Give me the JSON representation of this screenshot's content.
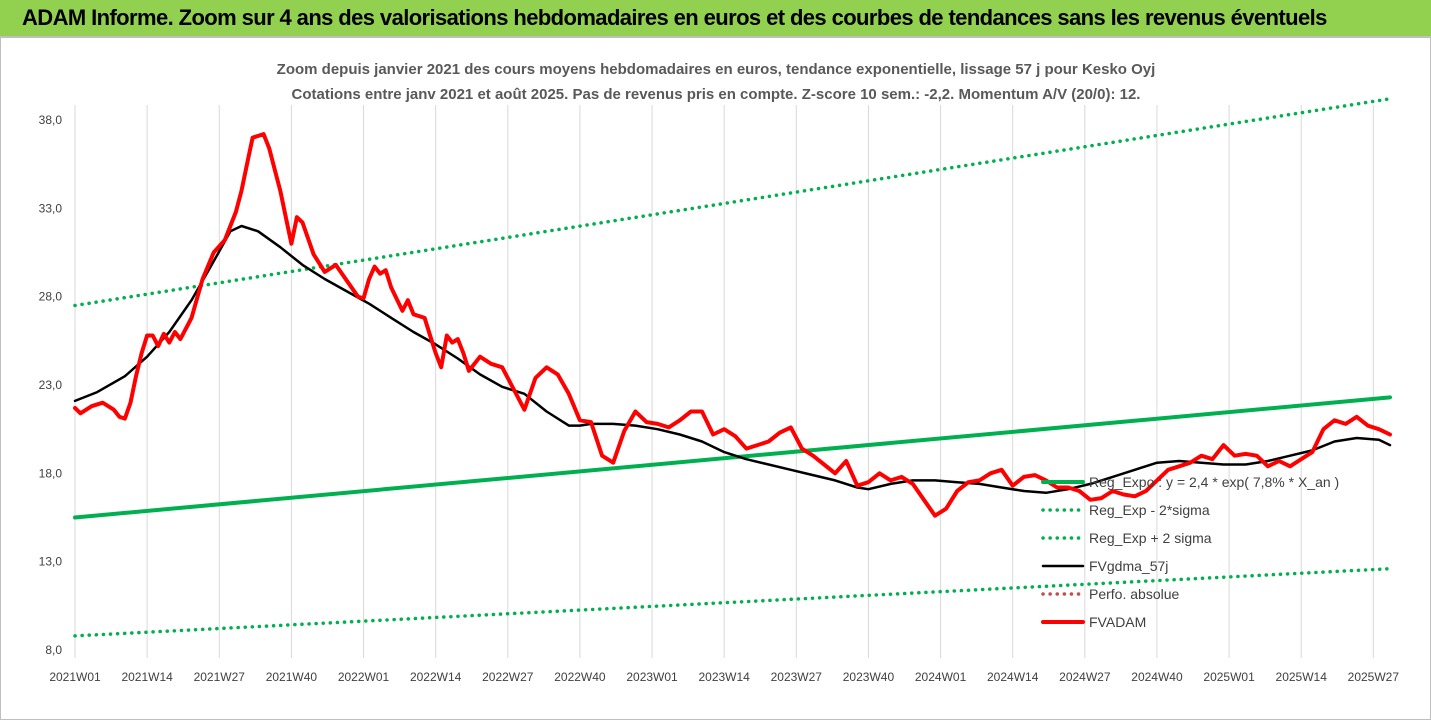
{
  "banner": {
    "title": "ADAM Informe. Zoom sur 4 ans des valorisations hebdomadaires en euros et des courbes de tendances sans les revenus éventuels"
  },
  "colors": {
    "banner_bg": "#92d050",
    "trend_green": "#00b050",
    "band_green": "#00b050",
    "smooth_black": "#000000",
    "price_red": "#ff0000",
    "perf_dotted": "#c0504d"
  },
  "chart_data": {
    "type": "line",
    "title": "Zoom depuis janvier 2021 des cours moyens hebdomadaires en euros, tendance exponentielle, lissage 57 j pour Kesko Oyj",
    "subtitle": "Cotations entre janv 2021 et août 2025.  Pas de revenus pris en compte. Z-score 10 sem.: -2,2. Momentum A/V (20/0): 12.",
    "xlabel": "",
    "ylabel": "",
    "ylim": [
      8,
      40
    ],
    "yticks": [
      8,
      13,
      18,
      23,
      28,
      33,
      38
    ],
    "ytick_labels": [
      "8,0",
      "13,0",
      "18,0",
      "23,0",
      "28,0",
      "33,0",
      "38,0"
    ],
    "xticks": [
      {
        "week": 1,
        "label": "2021W01"
      },
      {
        "week": 14,
        "label": "2021W14"
      },
      {
        "week": 27,
        "label": "2021W27"
      },
      {
        "week": 40,
        "label": "2021W40"
      },
      {
        "week": 53,
        "label": "2022W01"
      },
      {
        "week": 66,
        "label": "2022W14"
      },
      {
        "week": 79,
        "label": "2022W27"
      },
      {
        "week": 92,
        "label": "2022W40"
      },
      {
        "week": 105,
        "label": "2023W01"
      },
      {
        "week": 118,
        "label": "2023W14"
      },
      {
        "week": 131,
        "label": "2023W27"
      },
      {
        "week": 144,
        "label": "2023W40"
      },
      {
        "week": 157,
        "label": "2024W01"
      },
      {
        "week": 170,
        "label": "2024W14"
      },
      {
        "week": 183,
        "label": "2024W27"
      },
      {
        "week": 196,
        "label": "2024W40"
      },
      {
        "week": 209,
        "label": "2025W01"
      },
      {
        "week": 222,
        "label": "2025W14"
      },
      {
        "week": 235,
        "label": "2025W27"
      }
    ],
    "x_range": [
      1,
      238
    ],
    "grid": "vertical",
    "legend_position": "bottom-right",
    "series": [
      {
        "name": "Reg_Expo : y = 2,4 * exp( 7,8% *  X_an )",
        "style": "solid-thick",
        "color": "#00b050",
        "x": [
          1,
          238
        ],
        "values": [
          15.5,
          22.3
        ]
      },
      {
        "name": "Reg_Exp - 2*sigma",
        "style": "dotted",
        "color": "#00b050",
        "x": [
          1,
          238
        ],
        "values": [
          8.8,
          12.6
        ]
      },
      {
        "name": "Reg_Exp + 2 sigma",
        "style": "dotted",
        "color": "#00b050",
        "x": [
          1,
          238
        ],
        "values": [
          27.5,
          39.2
        ]
      },
      {
        "name": "FVgdma_57j",
        "style": "solid",
        "color": "#000000",
        "x": [
          1,
          5,
          10,
          14,
          18,
          22,
          26,
          29,
          31,
          34,
          38,
          42,
          46,
          50,
          54,
          58,
          62,
          66,
          70,
          74,
          78,
          82,
          86,
          90,
          92,
          94,
          98,
          102,
          106,
          110,
          114,
          118,
          122,
          126,
          130,
          134,
          138,
          142,
          144,
          148,
          152,
          156,
          160,
          164,
          168,
          172,
          176,
          180,
          184,
          188,
          192,
          196,
          200,
          204,
          208,
          212,
          216,
          220,
          224,
          228,
          232,
          236,
          238
        ],
        "values": [
          22.1,
          22.6,
          23.5,
          24.6,
          26.0,
          27.8,
          30.0,
          31.7,
          32.0,
          31.7,
          30.8,
          29.8,
          29.0,
          28.3,
          27.6,
          26.8,
          26.0,
          25.3,
          24.5,
          23.6,
          22.9,
          22.5,
          21.5,
          20.7,
          20.7,
          20.8,
          20.8,
          20.7,
          20.5,
          20.2,
          19.8,
          19.2,
          18.8,
          18.5,
          18.2,
          17.9,
          17.6,
          17.2,
          17.1,
          17.4,
          17.6,
          17.6,
          17.5,
          17.4,
          17.2,
          17.0,
          16.9,
          17.1,
          17.4,
          17.8,
          18.2,
          18.6,
          18.7,
          18.6,
          18.5,
          18.5,
          18.7,
          19.0,
          19.3,
          19.8,
          20.0,
          19.9,
          19.6
        ]
      },
      {
        "name": "Perfo. absolue",
        "style": "dotted",
        "color": "#c0504d",
        "x": [],
        "values": []
      },
      {
        "name": "FVADAM",
        "style": "solid-thick",
        "color": "#ff0000",
        "x": [
          1,
          2,
          4,
          6,
          8,
          9,
          10,
          11,
          12,
          13,
          14,
          15,
          16,
          17,
          18,
          19,
          20,
          22,
          24,
          26,
          28,
          30,
          31,
          32,
          33,
          35,
          36,
          37,
          38,
          39,
          40,
          41,
          42,
          44,
          46,
          48,
          50,
          52,
          53,
          54,
          55,
          56,
          57,
          58,
          60,
          61,
          62,
          64,
          65,
          66,
          67,
          68,
          69,
          70,
          71,
          72,
          74,
          76,
          78,
          80,
          82,
          84,
          86,
          88,
          90,
          92,
          94,
          96,
          98,
          100,
          102,
          104,
          106,
          108,
          110,
          112,
          114,
          116,
          118,
          120,
          122,
          124,
          126,
          128,
          130,
          132,
          134,
          136,
          138,
          140,
          142,
          144,
          146,
          148,
          150,
          152,
          154,
          156,
          158,
          160,
          162,
          164,
          166,
          168,
          170,
          172,
          174,
          176,
          178,
          180,
          182,
          184,
          186,
          188,
          190,
          192,
          194,
          196,
          198,
          200,
          202,
          204,
          206,
          208,
          210,
          212,
          214,
          216,
          218,
          220,
          222,
          224,
          226,
          228,
          230,
          232,
          234,
          236,
          238
        ],
        "values": [
          21.7,
          21.4,
          21.8,
          22.0,
          21.6,
          21.2,
          21.1,
          22.0,
          23.5,
          24.8,
          25.8,
          25.8,
          25.2,
          25.9,
          25.4,
          26.0,
          25.6,
          26.8,
          29.0,
          30.5,
          31.2,
          32.8,
          34.0,
          35.5,
          37.0,
          37.2,
          36.4,
          35.2,
          34.0,
          32.5,
          31.0,
          32.5,
          32.2,
          30.4,
          29.4,
          29.8,
          28.9,
          28.0,
          27.9,
          29.0,
          29.7,
          29.3,
          29.5,
          28.5,
          27.2,
          27.8,
          27.0,
          26.8,
          25.8,
          24.8,
          24.0,
          25.8,
          25.4,
          25.6,
          24.8,
          23.8,
          24.6,
          24.2,
          24.0,
          22.8,
          21.6,
          23.4,
          24.0,
          23.6,
          22.5,
          21.0,
          20.9,
          19.0,
          18.6,
          20.4,
          21.5,
          20.9,
          20.8,
          20.6,
          21.0,
          21.5,
          21.5,
          20.2,
          20.5,
          20.1,
          19.4,
          19.6,
          19.8,
          20.3,
          20.6,
          19.4,
          19.0,
          18.5,
          18.0,
          18.7,
          17.3,
          17.5,
          18.0,
          17.6,
          17.8,
          17.4,
          16.5,
          15.6,
          16.0,
          17.0,
          17.5,
          17.6,
          18.0,
          18.2,
          17.3,
          17.8,
          17.9,
          17.6,
          17.2,
          17.2,
          17.0,
          16.5,
          16.6,
          17.0,
          16.8,
          16.7,
          17.0,
          17.6,
          18.2,
          18.4,
          18.6,
          19.0,
          18.8,
          19.6,
          19.0,
          19.1,
          19.0,
          18.4,
          18.7,
          18.4,
          18.8,
          19.2,
          20.5,
          21.0,
          20.8,
          21.2,
          20.7,
          20.5,
          20.2
        ]
      }
    ]
  }
}
